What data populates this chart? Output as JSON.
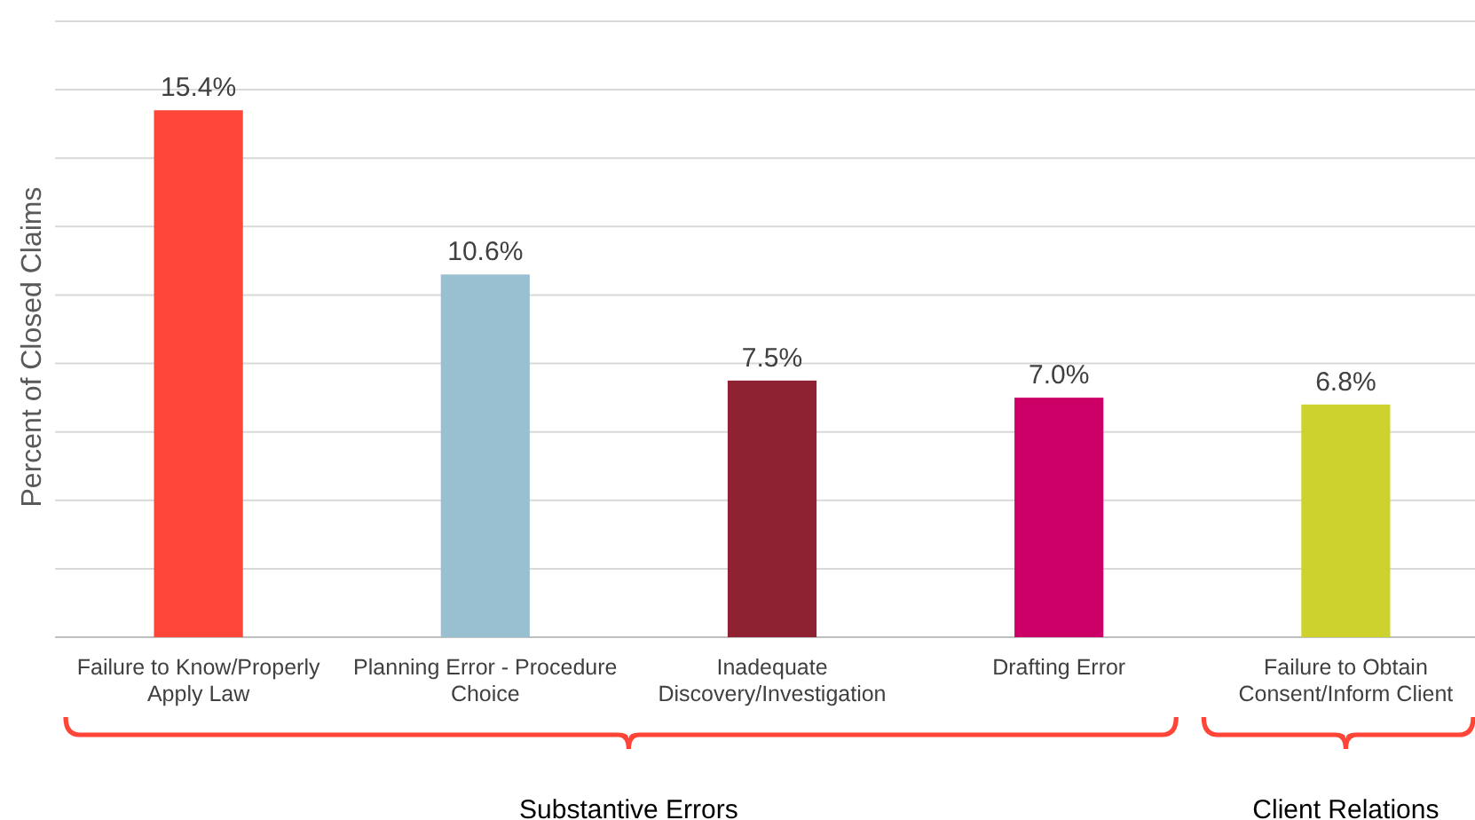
{
  "chart_data": {
    "type": "bar",
    "ylabel": "Percent of Closed Claims",
    "categories": [
      "Failure to Know/Properly Apply Law",
      "Planning Error - Procedure Choice",
      "Inadequate Discovery/Investigation",
      "Drafting Error",
      "Failure to Obtain Consent/Inform Client"
    ],
    "values": [
      15.4,
      10.6,
      7.5,
      7.0,
      6.8
    ],
    "colors": [
      "#ff4438",
      "#98c0d0",
      "#8e2232",
      "#cc0066",
      "#cdd22e"
    ],
    "value_labels": [
      "15.4%",
      "10.6%",
      "7.5%",
      "7.0%",
      "6.8%"
    ],
    "ylim": [
      0,
      18
    ],
    "yticks": [
      {
        "value": 0,
        "label": null
      },
      {
        "value": 2,
        "label": null
      },
      {
        "value": 4,
        "label": null
      },
      {
        "value": 6,
        "label": null
      },
      {
        "value": 8,
        "label": null
      },
      {
        "value": 10,
        "label": null
      },
      {
        "value": 12,
        "label": null
      },
      {
        "value": 14,
        "label": null
      },
      {
        "value": 16,
        "label": null
      },
      {
        "value": 18,
        "label": null
      }
    ],
    "grid": "y",
    "tick_labels": "x",
    "annotations": [
      "Substantive Errors",
      "Client Relations"
    ]
  }
}
